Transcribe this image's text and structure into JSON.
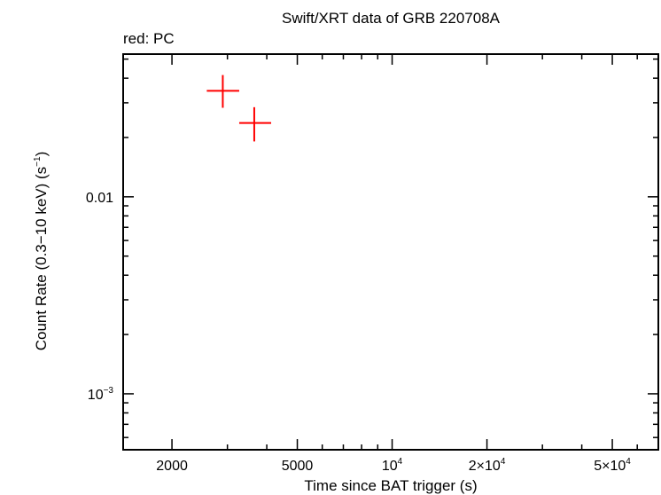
{
  "chart_data": {
    "type": "scatter",
    "title": "Swift/XRT data of GRB 220708A",
    "subtitle": "red: PC",
    "xlabel": "Time since BAT trigger (s)",
    "ylabel_main": "Count Rate (0.3−10 keV) (s",
    "ylabel_sup": "−1",
    "ylabel_close": ")",
    "x_scale": "log",
    "y_scale": "log",
    "xlim": [
      1400,
      70000
    ],
    "ylim": [
      0.00052,
      0.053
    ],
    "grid": false,
    "x_ticks": [
      {
        "value": 2000,
        "base": "2000",
        "sup": ""
      },
      {
        "value": 5000,
        "base": "5000",
        "sup": ""
      },
      {
        "value": 10000,
        "base": "10",
        "sup": "4"
      },
      {
        "value": 20000,
        "base": "2×10",
        "sup": "4"
      },
      {
        "value": 50000,
        "base": "5×10",
        "sup": "4"
      }
    ],
    "y_ticks": [
      {
        "value": 0.01,
        "base": "0.01",
        "sup": ""
      },
      {
        "value": 0.001,
        "base": "10",
        "sup": "−3"
      }
    ],
    "series": [
      {
        "color": "#ff0000",
        "points": [
          {
            "x": 2900,
            "y": 0.0345,
            "xerr": [
              2580,
              3270
            ],
            "yerr": [
              0.0283,
              0.0415
            ]
          },
          {
            "x": 3650,
            "y": 0.0237,
            "xerr": [
              3270,
              4130
            ],
            "yerr": [
              0.0191,
              0.0285
            ]
          }
        ]
      }
    ]
  }
}
